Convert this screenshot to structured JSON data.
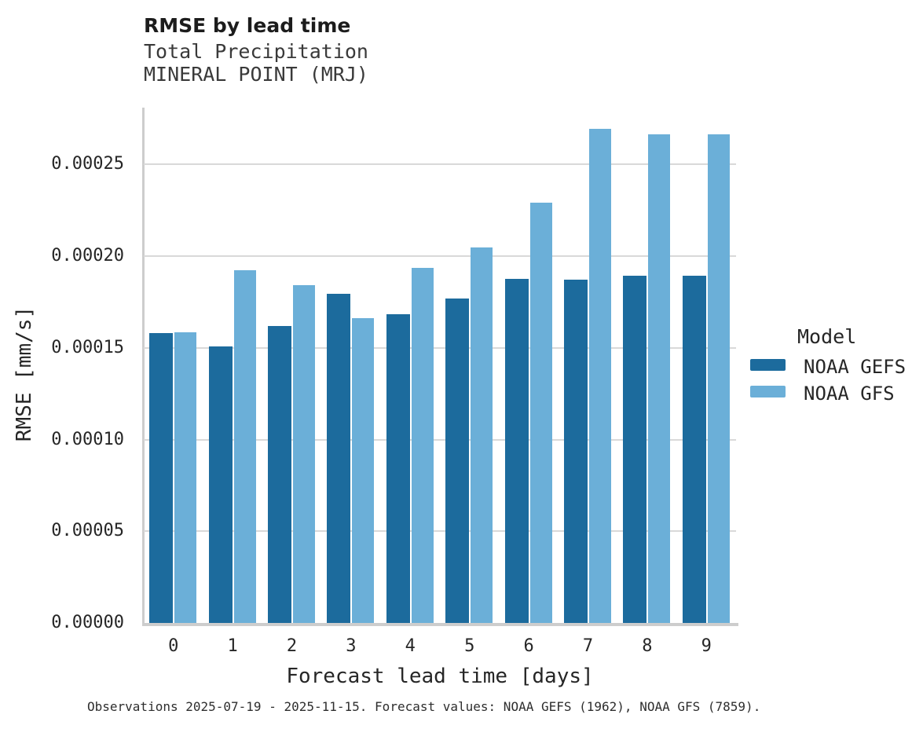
{
  "header": {
    "title": "RMSE by lead time",
    "subtitle1": "Total Precipitation",
    "subtitle2": "MINERAL POINT (MRJ)"
  },
  "chart_data": {
    "type": "bar",
    "title": "RMSE by lead time",
    "subtitle": [
      "Total Precipitation",
      "MINERAL POINT (MRJ)"
    ],
    "xlabel": "Forecast lead time [days]",
    "ylabel": "RMSE [mm/s]",
    "categories": [
      "0",
      "1",
      "2",
      "3",
      "4",
      "5",
      "6",
      "7",
      "8",
      "9"
    ],
    "series": [
      {
        "name": "NOAA GEFS",
        "color": "#1c6b9d",
        "values": [
          0.0001579,
          0.0001507,
          0.0001618,
          0.0001793,
          0.0001684,
          0.0001769,
          0.0001878,
          0.0001873,
          0.0001895,
          0.0001892
        ]
      },
      {
        "name": "NOAA GFS",
        "color": "#6bafd8",
        "values": [
          0.0001586,
          0.0001923,
          0.0001844,
          0.0001661,
          0.0001938,
          0.0002048,
          0.0002291,
          0.0002696,
          0.0002666,
          0.0002663
        ]
      }
    ],
    "ylim": [
      0,
      0.000281
    ],
    "yticks": [
      0,
      5e-05,
      0.0001,
      0.00015,
      0.0002,
      0.00025
    ],
    "ytick_labels": [
      "0.00000",
      "0.00005",
      "0.00010",
      "0.00015",
      "0.00020",
      "0.00025"
    ],
    "grid": "horizontal",
    "legend_position": "right",
    "legend_title": "Model"
  },
  "footer": {
    "caption": "Observations 2025-07-19 - 2025-11-15. Forecast values: NOAA GEFS (1962), NOAA GFS (7859)."
  },
  "colors": {
    "grid": "#d9d9d9",
    "spine": "#cdcdcd",
    "background": "#ffffff"
  }
}
